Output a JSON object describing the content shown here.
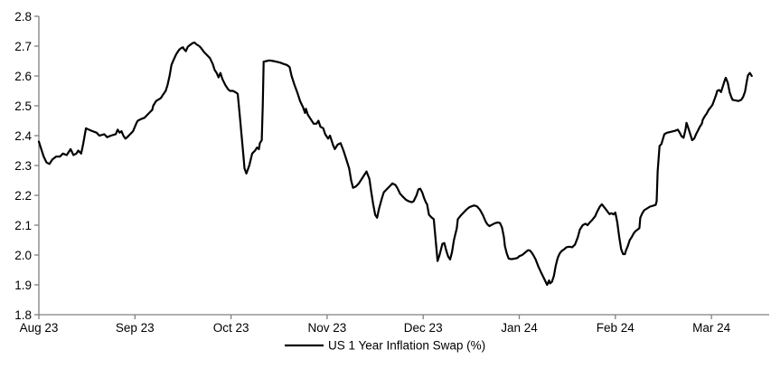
{
  "chart_data": {
    "type": "line",
    "title": "",
    "legend_label": "US 1 Year Inflation Swap (%)",
    "legend_position": "bottom-center",
    "grid": false,
    "ylim": [
      1.8,
      2.8
    ],
    "y_tick_labels": [
      "2.8",
      "2.7",
      "2.6",
      "2.5",
      "2.4",
      "2.3",
      "2.2",
      "2.1",
      "2.0",
      "1.9",
      "1.8"
    ],
    "x_tick_labels": [
      "Aug 23",
      "Sep 23",
      "Oct 23",
      "Nov 23",
      "Dec 23",
      "Jan 24",
      "Feb 24",
      "Mar 24"
    ],
    "x_unit": "months_from_Aug_2023",
    "colors": {
      "line": "#000000",
      "axis": "#808080",
      "text": "#000000",
      "background": "#ffffff"
    },
    "series": [
      {
        "name": "US 1 Year Inflation Swap (%)",
        "points": [
          [
            0.0,
            2.38
          ],
          [
            0.02,
            2.36
          ],
          [
            0.05,
            2.33
          ],
          [
            0.08,
            2.31
          ],
          [
            0.11,
            2.305
          ],
          [
            0.14,
            2.32
          ],
          [
            0.18,
            2.33
          ],
          [
            0.22,
            2.33
          ],
          [
            0.25,
            2.34
          ],
          [
            0.29,
            2.335
          ],
          [
            0.33,
            2.355
          ],
          [
            0.36,
            2.335
          ],
          [
            0.39,
            2.34
          ],
          [
            0.41,
            2.35
          ],
          [
            0.44,
            2.34
          ],
          [
            0.46,
            2.37
          ],
          [
            0.49,
            2.425
          ],
          [
            0.52,
            2.42
          ],
          [
            0.56,
            2.415
          ],
          [
            0.6,
            2.41
          ],
          [
            0.63,
            2.4
          ],
          [
            0.68,
            2.405
          ],
          [
            0.71,
            2.395
          ],
          [
            0.75,
            2.4
          ],
          [
            0.8,
            2.405
          ],
          [
            0.82,
            2.42
          ],
          [
            0.84,
            2.41
          ],
          [
            0.86,
            2.415
          ],
          [
            0.88,
            2.4
          ],
          [
            0.9,
            2.39
          ],
          [
            0.92,
            2.395
          ],
          [
            0.95,
            2.405
          ],
          [
            0.98,
            2.415
          ],
          [
            1.0,
            2.43
          ],
          [
            1.02,
            2.445
          ],
          [
            1.03,
            2.45
          ],
          [
            1.06,
            2.455
          ],
          [
            1.1,
            2.46
          ],
          [
            1.13,
            2.47
          ],
          [
            1.16,
            2.48
          ],
          [
            1.18,
            2.486
          ],
          [
            1.19,
            2.5
          ],
          [
            1.22,
            2.516
          ],
          [
            1.24,
            2.52
          ],
          [
            1.27,
            2.526
          ],
          [
            1.29,
            2.536
          ],
          [
            1.32,
            2.55
          ],
          [
            1.34,
            2.57
          ],
          [
            1.36,
            2.6
          ],
          [
            1.38,
            2.637
          ],
          [
            1.4,
            2.652
          ],
          [
            1.43,
            2.673
          ],
          [
            1.46,
            2.688
          ],
          [
            1.48,
            2.693
          ],
          [
            1.5,
            2.696
          ],
          [
            1.51,
            2.69
          ],
          [
            1.53,
            2.683
          ],
          [
            1.55,
            2.698
          ],
          [
            1.57,
            2.703
          ],
          [
            1.6,
            2.71
          ],
          [
            1.62,
            2.712
          ],
          [
            1.64,
            2.706
          ],
          [
            1.67,
            2.7
          ],
          [
            1.69,
            2.693
          ],
          [
            1.72,
            2.68
          ],
          [
            1.75,
            2.67
          ],
          [
            1.78,
            2.66
          ],
          [
            1.81,
            2.64
          ],
          [
            1.83,
            2.62
          ],
          [
            1.85,
            2.61
          ],
          [
            1.87,
            2.595
          ],
          [
            1.89,
            2.61
          ],
          [
            1.91,
            2.59
          ],
          [
            1.94,
            2.57
          ],
          [
            1.97,
            2.555
          ],
          [
            1.99,
            2.55
          ],
          [
            2.02,
            2.55
          ],
          [
            2.05,
            2.545
          ],
          [
            2.07,
            2.54
          ],
          [
            2.09,
            2.47
          ],
          [
            2.11,
            2.4
          ],
          [
            2.13,
            2.33
          ],
          [
            2.14,
            2.29
          ],
          [
            2.16,
            2.273
          ],
          [
            2.19,
            2.3
          ],
          [
            2.22,
            2.34
          ],
          [
            2.25,
            2.35
          ],
          [
            2.27,
            2.36
          ],
          [
            2.29,
            2.355
          ],
          [
            2.3,
            2.375
          ],
          [
            2.32,
            2.385
          ],
          [
            2.33,
            2.5
          ],
          [
            2.34,
            2.648
          ],
          [
            2.37,
            2.65
          ],
          [
            2.4,
            2.652
          ],
          [
            2.44,
            2.65
          ],
          [
            2.47,
            2.648
          ],
          [
            2.51,
            2.645
          ],
          [
            2.55,
            2.64
          ],
          [
            2.58,
            2.637
          ],
          [
            2.61,
            2.63
          ],
          [
            2.63,
            2.6
          ],
          [
            2.66,
            2.57
          ],
          [
            2.69,
            2.545
          ],
          [
            2.72,
            2.515
          ],
          [
            2.75,
            2.495
          ],
          [
            2.77,
            2.476
          ],
          [
            2.78,
            2.49
          ],
          [
            2.8,
            2.47
          ],
          [
            2.83,
            2.455
          ],
          [
            2.86,
            2.44
          ],
          [
            2.89,
            2.44
          ],
          [
            2.91,
            2.45
          ],
          [
            2.93,
            2.43
          ],
          [
            2.96,
            2.425
          ],
          [
            2.98,
            2.405
          ],
          [
            3.01,
            2.39
          ],
          [
            3.03,
            2.4
          ],
          [
            3.06,
            2.37
          ],
          [
            3.08,
            2.355
          ],
          [
            3.11,
            2.37
          ],
          [
            3.14,
            2.375
          ],
          [
            3.17,
            2.35
          ],
          [
            3.2,
            2.32
          ],
          [
            3.23,
            2.29
          ],
          [
            3.25,
            2.25
          ],
          [
            3.27,
            2.225
          ],
          [
            3.3,
            2.23
          ],
          [
            3.33,
            2.24
          ],
          [
            3.36,
            2.255
          ],
          [
            3.39,
            2.27
          ],
          [
            3.41,
            2.28
          ],
          [
            3.44,
            2.255
          ],
          [
            3.46,
            2.21
          ],
          [
            3.48,
            2.17
          ],
          [
            3.5,
            2.135
          ],
          [
            3.52,
            2.125
          ],
          [
            3.54,
            2.155
          ],
          [
            3.57,
            2.19
          ],
          [
            3.59,
            2.21
          ],
          [
            3.62,
            2.22
          ],
          [
            3.65,
            2.23
          ],
          [
            3.68,
            2.24
          ],
          [
            3.71,
            2.235
          ],
          [
            3.73,
            2.225
          ],
          [
            3.76,
            2.205
          ],
          [
            3.79,
            2.195
          ],
          [
            3.82,
            2.185
          ],
          [
            3.85,
            2.18
          ],
          [
            3.88,
            2.177
          ],
          [
            3.9,
            2.18
          ],
          [
            3.93,
            2.2
          ],
          [
            3.95,
            2.22
          ],
          [
            3.97,
            2.222
          ],
          [
            3.99,
            2.21
          ],
          [
            4.01,
            2.19
          ],
          [
            4.03,
            2.175
          ],
          [
            4.04,
            2.17
          ],
          [
            4.06,
            2.135
          ],
          [
            4.09,
            2.125
          ],
          [
            4.11,
            2.12
          ],
          [
            4.13,
            2.05
          ],
          [
            4.15,
            1.98
          ],
          [
            4.17,
            2.0
          ],
          [
            4.19,
            2.025
          ],
          [
            4.2,
            2.038
          ],
          [
            4.22,
            2.04
          ],
          [
            4.24,
            2.015
          ],
          [
            4.26,
            1.995
          ],
          [
            4.28,
            1.985
          ],
          [
            4.3,
            2.01
          ],
          [
            4.32,
            2.05
          ],
          [
            4.35,
            2.09
          ],
          [
            4.36,
            2.12
          ],
          [
            4.39,
            2.132
          ],
          [
            4.42,
            2.142
          ],
          [
            4.45,
            2.152
          ],
          [
            4.48,
            2.16
          ],
          [
            4.51,
            2.164
          ],
          [
            4.53,
            2.166
          ],
          [
            4.56,
            2.163
          ],
          [
            4.59,
            2.152
          ],
          [
            4.62,
            2.135
          ],
          [
            4.65,
            2.112
          ],
          [
            4.67,
            2.102
          ],
          [
            4.69,
            2.097
          ],
          [
            4.72,
            2.102
          ],
          [
            4.75,
            2.107
          ],
          [
            4.78,
            2.109
          ],
          [
            4.8,
            2.107
          ],
          [
            4.82,
            2.092
          ],
          [
            4.84,
            2.06
          ],
          [
            4.85,
            2.03
          ],
          [
            4.87,
            2.005
          ],
          [
            4.89,
            1.988
          ],
          [
            4.92,
            1.986
          ],
          [
            4.95,
            1.988
          ],
          [
            4.98,
            1.99
          ],
          [
            5.0,
            1.996
          ],
          [
            5.03,
            2.0
          ],
          [
            5.06,
            2.008
          ],
          [
            5.09,
            2.016
          ],
          [
            5.11,
            2.015
          ],
          [
            5.13,
            2.008
          ],
          [
            5.15,
            1.998
          ],
          [
            5.17,
            1.985
          ],
          [
            5.2,
            1.96
          ],
          [
            5.23,
            1.94
          ],
          [
            5.26,
            1.92
          ],
          [
            5.29,
            1.9
          ],
          [
            5.31,
            1.915
          ],
          [
            5.32,
            1.905
          ],
          [
            5.34,
            1.91
          ],
          [
            5.36,
            1.93
          ],
          [
            5.38,
            1.965
          ],
          [
            5.4,
            1.99
          ],
          [
            5.42,
            2.005
          ],
          [
            5.44,
            2.013
          ],
          [
            5.47,
            2.02
          ],
          [
            5.49,
            2.026
          ],
          [
            5.52,
            2.028
          ],
          [
            5.55,
            2.026
          ],
          [
            5.58,
            2.035
          ],
          [
            5.61,
            2.06
          ],
          [
            5.63,
            2.085
          ],
          [
            5.66,
            2.1
          ],
          [
            5.69,
            2.105
          ],
          [
            5.71,
            2.1
          ],
          [
            5.73,
            2.108
          ],
          [
            5.76,
            2.118
          ],
          [
            5.79,
            2.13
          ],
          [
            5.81,
            2.145
          ],
          [
            5.84,
            2.163
          ],
          [
            5.86,
            2.17
          ],
          [
            5.89,
            2.158
          ],
          [
            5.92,
            2.145
          ],
          [
            5.94,
            2.137
          ],
          [
            5.96,
            2.14
          ],
          [
            5.98,
            2.136
          ],
          [
            6.0,
            2.142
          ],
          [
            6.02,
            2.11
          ],
          [
            6.04,
            2.06
          ],
          [
            6.06,
            2.02
          ],
          [
            6.08,
            2.003
          ],
          [
            6.1,
            2.003
          ],
          [
            6.11,
            2.015
          ],
          [
            6.13,
            2.03
          ],
          [
            6.15,
            2.05
          ],
          [
            6.17,
            2.06
          ],
          [
            6.19,
            2.072
          ],
          [
            6.21,
            2.08
          ],
          [
            6.23,
            2.085
          ],
          [
            6.25,
            2.09
          ],
          [
            6.26,
            2.125
          ],
          [
            6.28,
            2.14
          ],
          [
            6.3,
            2.15
          ],
          [
            6.33,
            2.156
          ],
          [
            6.36,
            2.162
          ],
          [
            6.39,
            2.165
          ],
          [
            6.42,
            2.168
          ],
          [
            6.43,
            2.18
          ],
          [
            6.44,
            2.28
          ],
          [
            6.46,
            2.365
          ],
          [
            6.48,
            2.372
          ],
          [
            6.51,
            2.405
          ],
          [
            6.54,
            2.41
          ],
          [
            6.57,
            2.412
          ],
          [
            6.59,
            2.414
          ],
          [
            6.62,
            2.416
          ],
          [
            6.65,
            2.42
          ],
          [
            6.67,
            2.41
          ],
          [
            6.69,
            2.398
          ],
          [
            6.71,
            2.393
          ],
          [
            6.73,
            2.42
          ],
          [
            6.74,
            2.443
          ],
          [
            6.76,
            2.425
          ],
          [
            6.78,
            2.405
          ],
          [
            6.8,
            2.385
          ],
          [
            6.82,
            2.39
          ],
          [
            6.84,
            2.405
          ],
          [
            6.86,
            2.417
          ],
          [
            6.88,
            2.43
          ],
          [
            6.9,
            2.44
          ],
          [
            6.91,
            2.453
          ],
          [
            6.93,
            2.465
          ],
          [
            6.95,
            2.474
          ],
          [
            6.97,
            2.486
          ],
          [
            6.99,
            2.494
          ],
          [
            7.01,
            2.503
          ],
          [
            7.03,
            2.52
          ],
          [
            7.05,
            2.538
          ],
          [
            7.06,
            2.55
          ],
          [
            7.08,
            2.553
          ],
          [
            7.1,
            2.546
          ],
          [
            7.12,
            2.567
          ],
          [
            7.14,
            2.587
          ],
          [
            7.15,
            2.594
          ],
          [
            7.17,
            2.577
          ],
          [
            7.19,
            2.545
          ],
          [
            7.21,
            2.527
          ],
          [
            7.22,
            2.52
          ],
          [
            7.25,
            2.518
          ],
          [
            7.28,
            2.516
          ],
          [
            7.31,
            2.52
          ],
          [
            7.33,
            2.53
          ],
          [
            7.35,
            2.548
          ],
          [
            7.37,
            2.585
          ],
          [
            7.38,
            2.602
          ],
          [
            7.4,
            2.61
          ],
          [
            7.42,
            2.6
          ]
        ]
      }
    ]
  }
}
